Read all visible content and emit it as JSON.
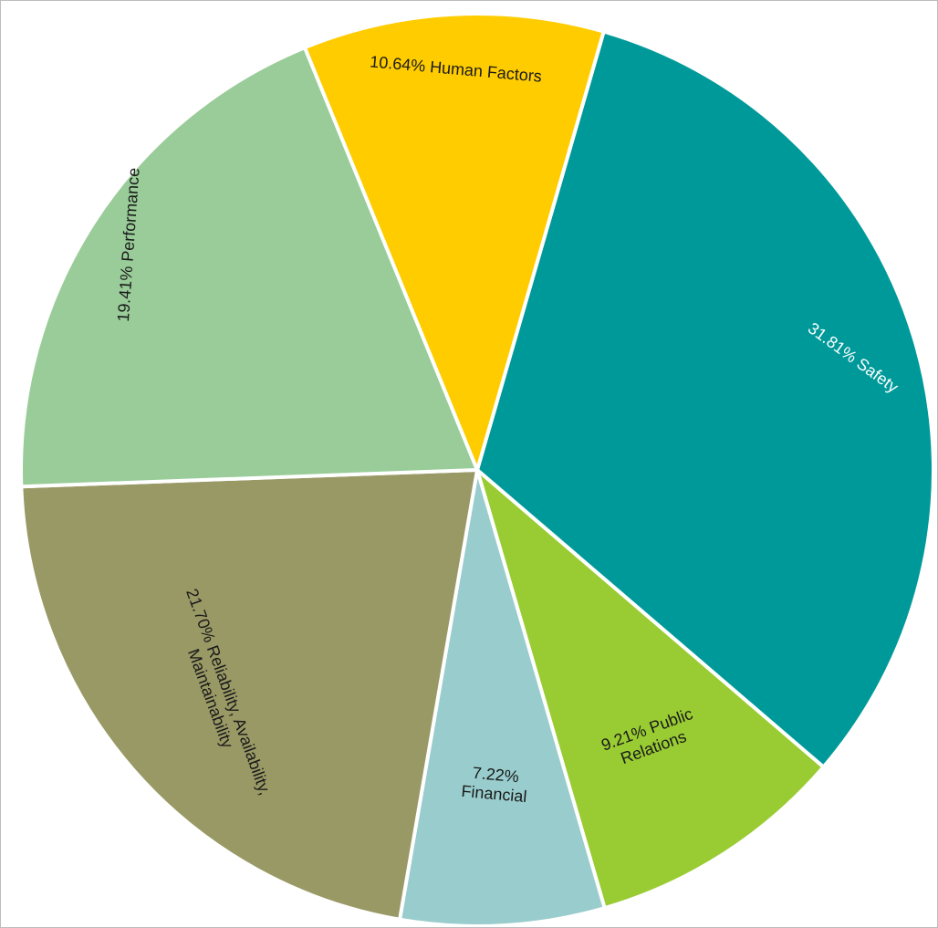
{
  "chart_data": {
    "type": "pie",
    "title": "",
    "slices": [
      {
        "label_lines": [
          "31.81% Safety"
        ],
        "value": 31.81,
        "color": "#009999",
        "label_color": "#ffffff"
      },
      {
        "label_lines": [
          "9.21% Public",
          "Relations"
        ],
        "value": 9.21,
        "color": "#99cc33",
        "label_color": "#1a1a1a"
      },
      {
        "label_lines": [
          "7.22%",
          "Financial"
        ],
        "value": 7.22,
        "color": "#99cccc",
        "label_color": "#1a1a1a"
      },
      {
        "label_lines": [
          "21.70% Reliability, Availability,",
          "Maintainability"
        ],
        "value": 21.7,
        "color": "#999966",
        "label_color": "#1a1a1a"
      },
      {
        "label_lines": [
          "19.41% Performance"
        ],
        "value": 19.41,
        "color": "#99cc99",
        "label_color": "#1a1a1a"
      },
      {
        "label_lines": [
          "10.64% Human Factors"
        ],
        "value": 10.64,
        "color": "#ffcc00",
        "label_color": "#1a1a1a"
      }
    ],
    "start_angle_deg": 16.1,
    "direction": "clockwise",
    "legend": "none",
    "labels": "inside-slices"
  }
}
